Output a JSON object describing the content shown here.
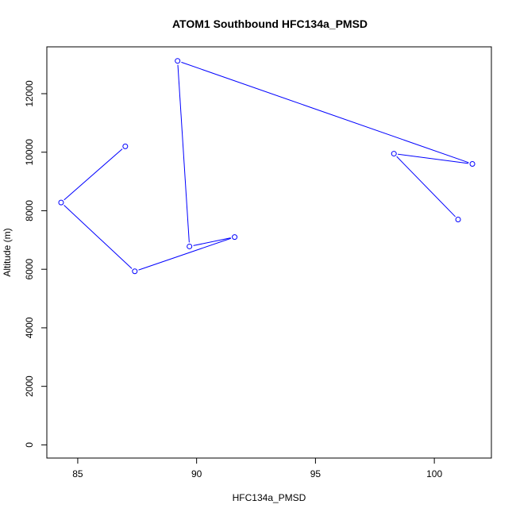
{
  "chart_data": {
    "type": "line",
    "title": "ATOM1 Southbound HFC134a_PMSD",
    "xlabel": "HFC134a_PMSD",
    "ylabel": "Altitude (m)",
    "xlim": [
      83.7,
      102.4
    ],
    "ylim": [
      -450,
      13600
    ],
    "x_ticks": [
      85,
      90,
      95,
      100
    ],
    "x_tick_labels": [
      "85",
      "90",
      "95",
      "100"
    ],
    "y_ticks": [
      0,
      2000,
      4000,
      6000,
      8000,
      10000,
      12000
    ],
    "y_tick_labels": [
      "0",
      "2000",
      "4000",
      "6000",
      "8000",
      "10000",
      "12000"
    ],
    "grid": false,
    "legend": "none",
    "series": [
      {
        "color": "#0000ff",
        "marker": "open-circle",
        "points": [
          {
            "x": 101.0,
            "y": 7700
          },
          {
            "x": 98.3,
            "y": 9950
          },
          {
            "x": 101.6,
            "y": 9600
          },
          {
            "x": 89.2,
            "y": 13120
          },
          {
            "x": 89.7,
            "y": 6780
          },
          {
            "x": 91.6,
            "y": 7100
          },
          {
            "x": 87.4,
            "y": 5930
          },
          {
            "x": 84.3,
            "y": 8280
          },
          {
            "x": 87.0,
            "y": 10200
          }
        ]
      }
    ]
  }
}
